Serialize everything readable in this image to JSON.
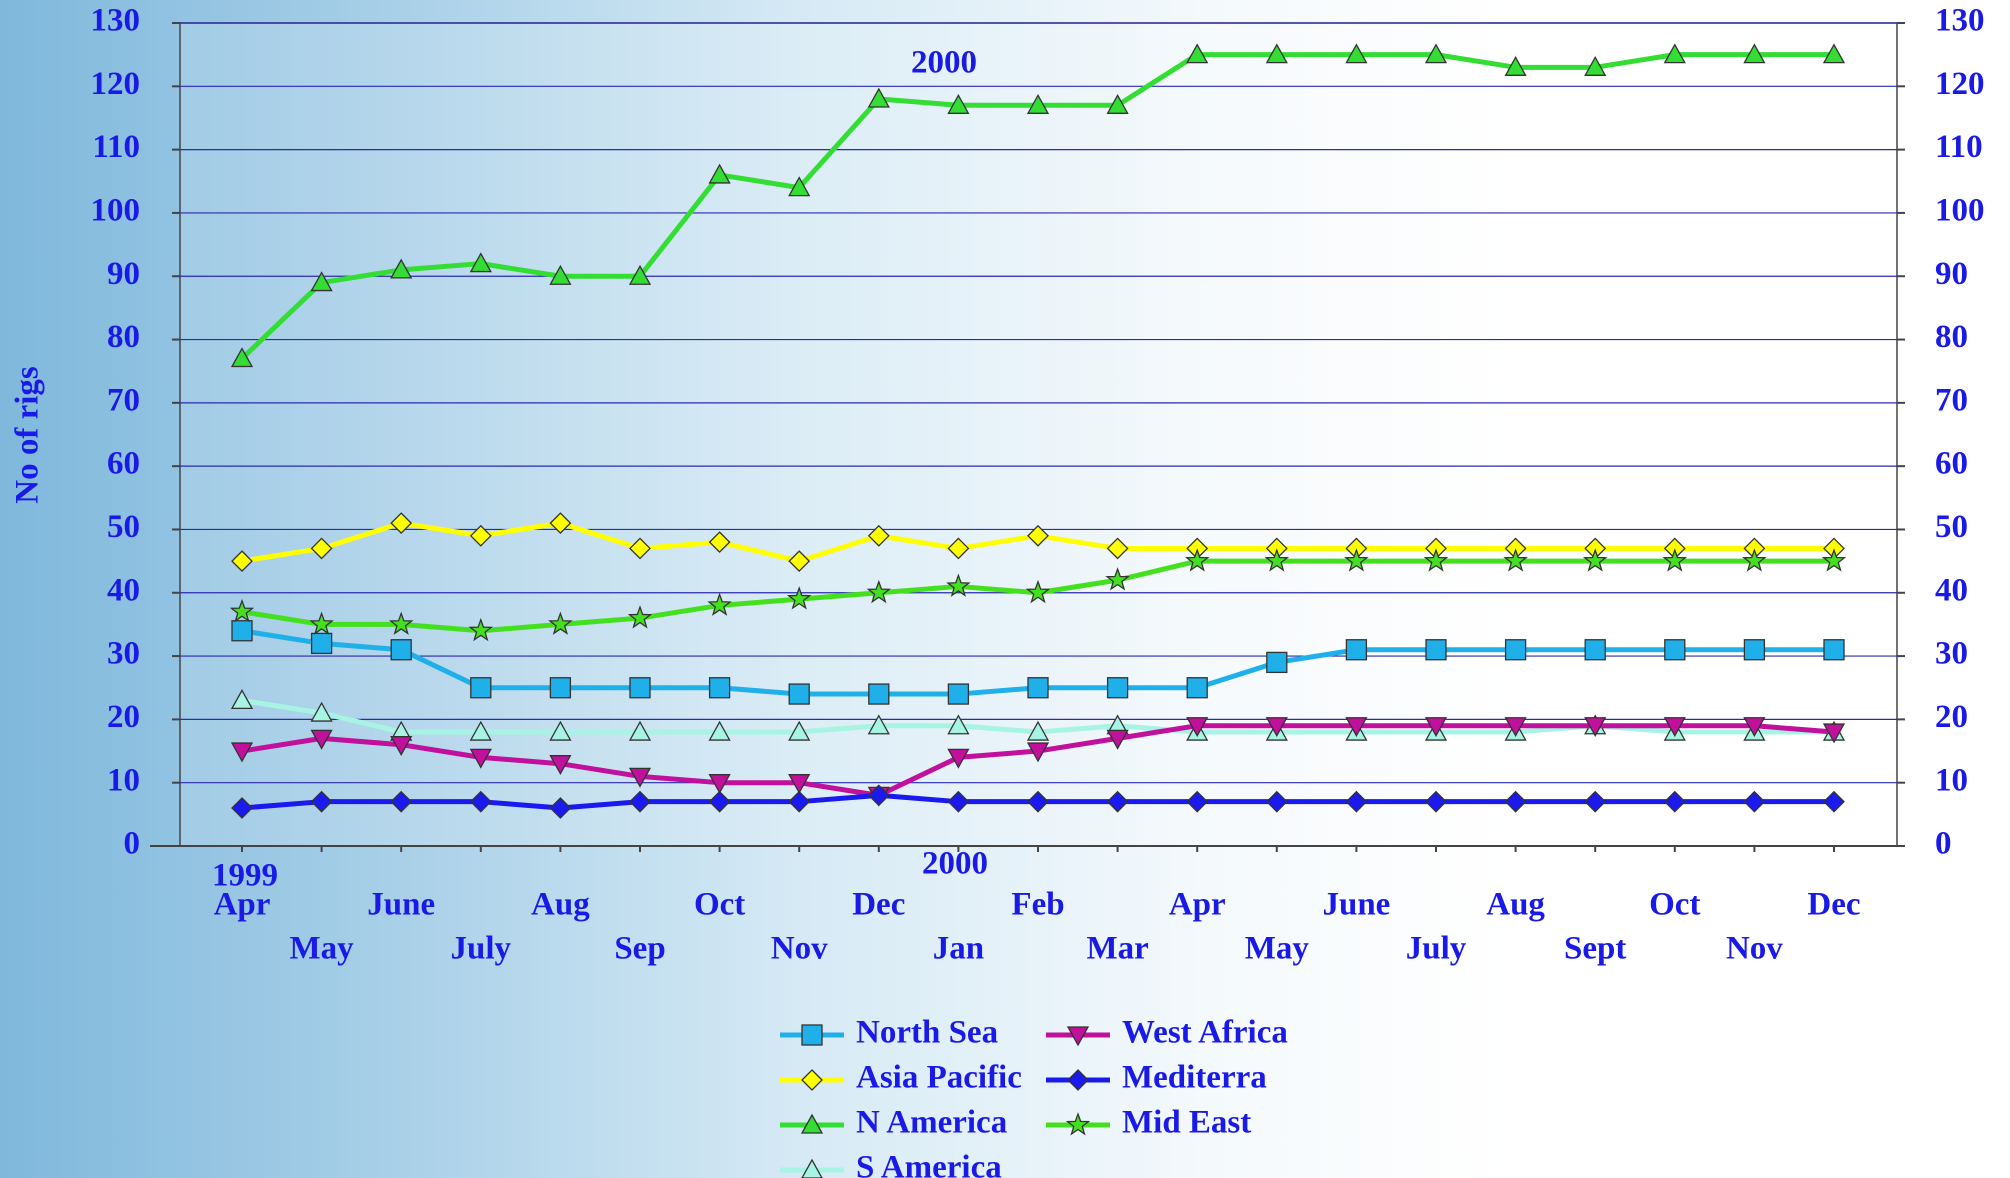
{
  "chart_data": {
    "type": "line",
    "y_label": "No of rigs",
    "annotations": [
      "1999",
      "2000",
      "2000"
    ],
    "categories": [
      "Apr",
      "May",
      "June",
      "July",
      "Aug",
      "Sep",
      "Oct",
      "Nov",
      "Dec",
      "Jan",
      "Feb",
      "Mar",
      "Apr",
      "May",
      "June",
      "July",
      "Aug",
      "Sept",
      "Oct",
      "Nov",
      "Dec"
    ],
    "ylim": [
      0,
      130
    ],
    "yticks": [
      0,
      10,
      20,
      30,
      40,
      50,
      60,
      70,
      80,
      90,
      100,
      110,
      120,
      130
    ],
    "y2lim": [
      0,
      130
    ],
    "y2ticks": [
      0,
      10,
      20,
      30,
      40,
      50,
      60,
      70,
      80,
      90,
      100,
      110,
      120,
      130
    ],
    "grid": true,
    "series": [
      {
        "name": "North Sea",
        "color": "#1fb0ea",
        "marker": "square",
        "values": [
          34,
          32,
          31,
          25,
          25,
          25,
          25,
          24,
          24,
          24,
          25,
          25,
          25,
          29,
          31,
          31,
          31,
          31,
          31,
          31,
          31
        ]
      },
      {
        "name": "Asia Pacific",
        "color": "#ffff00",
        "marker": "diamond",
        "values": [
          45,
          47,
          51,
          49,
          51,
          47,
          48,
          45,
          49,
          47,
          49,
          47,
          47,
          47,
          47,
          47,
          47,
          47,
          47,
          47,
          47
        ]
      },
      {
        "name": "N America",
        "color": "#33dd33",
        "marker": "triangle-up",
        "values": [
          77,
          89,
          91,
          92,
          90,
          90,
          106,
          104,
          118,
          117,
          117,
          117,
          125,
          125,
          125,
          125,
          123,
          123,
          125,
          125,
          125
        ]
      },
      {
        "name": "S America",
        "color": "#a8f4e4",
        "marker": "triangle-up",
        "values": [
          23,
          21,
          18,
          18,
          18,
          18,
          18,
          18,
          19,
          19,
          18,
          19,
          18,
          18,
          18,
          18,
          18,
          19,
          18,
          18,
          18
        ]
      },
      {
        "name": "West Africa",
        "color": "#c0109c",
        "marker": "triangle-down",
        "values": [
          15,
          17,
          16,
          14,
          13,
          11,
          10,
          10,
          8,
          14,
          15,
          17,
          19,
          19,
          19,
          19,
          19,
          19,
          19,
          19,
          18
        ]
      },
      {
        "name": "Mediterra",
        "color": "#1a1aee",
        "marker": "diamond",
        "values": [
          6,
          7,
          7,
          7,
          6,
          7,
          7,
          7,
          8,
          7,
          7,
          7,
          7,
          7,
          7,
          7,
          7,
          7,
          7,
          7,
          7
        ]
      },
      {
        "name": "Mid East",
        "color": "#44e020",
        "marker": "star",
        "values": [
          37,
          35,
          35,
          34,
          35,
          36,
          38,
          39,
          40,
          41,
          40,
          42,
          45,
          45,
          45,
          45,
          45,
          45,
          45,
          45,
          45
        ]
      }
    ]
  }
}
